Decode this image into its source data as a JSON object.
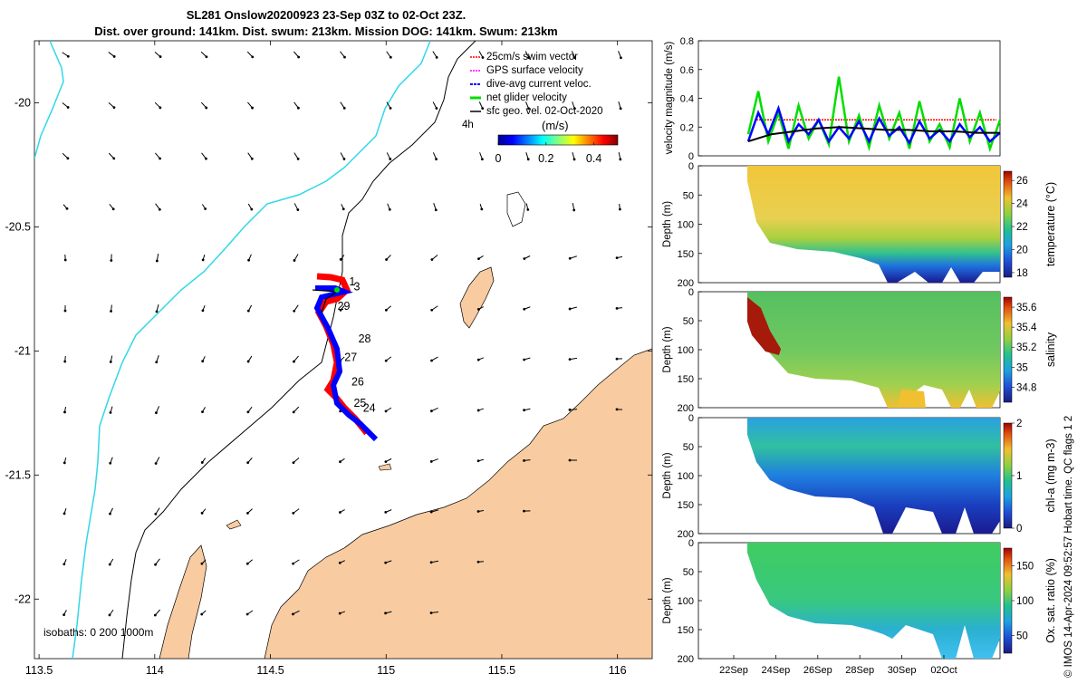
{
  "header": {
    "title_line1": "SL281 Onslow20200923 23-Sep 03Z to 02-Oct 23Z.",
    "title_line2": "Dist. over ground: 141km. Dist. swum: 213km. Mission DOG: 141km. Swum: 213km"
  },
  "footer": {
    "credit": "© IMOS 14-Apr-2024 09:52:57 Hobart time. QC flags 1  2"
  },
  "chart_data": [
    {
      "type": "map",
      "x_ticks": [
        "113.5",
        "114",
        "114.5",
        "115",
        "115.5",
        "116"
      ],
      "y_ticks": [
        "-20",
        "-20.5",
        "-21",
        "-21.5",
        "-22"
      ],
      "xlim": [
        113.48,
        116.15
      ],
      "ylim": [
        -22.24,
        -19.75
      ],
      "legend": {
        "placement": "top-right",
        "items": [
          {
            "label": "25cm/s swim vector",
            "color": "#ff0000"
          },
          {
            "label": "GPS surface velocity",
            "color": "#ff00ff"
          },
          {
            "label": "dive-avg current veloc.",
            "color": "#0000ff"
          },
          {
            "label": "net glider velocity",
            "color": "#00dd00"
          },
          {
            "label": "sfc geo. vel. 02-Oct-2020",
            "color": "#000000"
          }
        ],
        "extra": "4h"
      },
      "colorbar": {
        "label": "(m/s)",
        "ticks": [
          "0",
          "0.2",
          "0.4"
        ],
        "range": [
          0,
          0.5
        ]
      },
      "isobath_label": "isobaths: 0   200  1000m",
      "track_labels": [
        {
          "text": "1",
          "x": 114.84,
          "y": -20.735
        },
        {
          "text": "3",
          "x": 114.86,
          "y": -20.755
        },
        {
          "text": "29",
          "x": 114.79,
          "y": -20.835
        },
        {
          "text": "28",
          "x": 114.88,
          "y": -20.965
        },
        {
          "text": "27",
          "x": 114.82,
          "y": -21.04
        },
        {
          "text": "26",
          "x": 114.85,
          "y": -21.14
        },
        {
          "text": "25",
          "x": 114.86,
          "y": -21.225
        },
        {
          "text": "24",
          "x": 114.9,
          "y": -21.245
        }
      ]
    },
    {
      "type": "line",
      "ylabel": "velocity magnitude (m/s)",
      "y_ticks": [
        "0",
        "0.2",
        "0.4",
        "0.6",
        "0.8"
      ],
      "ylim": [
        0,
        0.8
      ],
      "series": [
        {
          "color": "#ff0000",
          "values": [
            0.25,
            0.25
          ]
        },
        {
          "color": "#00dd00",
          "values": [
            0.15,
            0.45,
            0.1,
            0.3,
            0.05,
            0.35,
            0.12,
            0.25,
            0.08,
            0.55,
            0.1,
            0.28,
            0.06,
            0.35,
            0.12,
            0.3,
            0.05,
            0.38,
            0.1,
            0.22,
            0.06,
            0.4,
            0.1,
            0.3,
            0.05,
            0.25
          ]
        },
        {
          "color": "#0000ff",
          "values": [
            0.1,
            0.3,
            0.15,
            0.33,
            0.1,
            0.22,
            0.15,
            0.25,
            0.1,
            0.2,
            0.12,
            0.24,
            0.1,
            0.26,
            0.14,
            0.2,
            0.09,
            0.24,
            0.12,
            0.18,
            0.1,
            0.22,
            0.13,
            0.2,
            0.1,
            0.16
          ]
        },
        {
          "color": "#000000",
          "values": [
            0.1,
            0.15,
            0.17,
            0.19,
            0.2,
            0.19,
            0.18,
            0.18,
            0.17,
            0.17,
            0.16,
            0.16
          ]
        }
      ]
    },
    {
      "type": "heatmap",
      "ylabel": "Depth (m)",
      "y_ticks": [
        "0",
        "50",
        "100",
        "150",
        "200"
      ],
      "colorbar_label": "temperature (°C)",
      "colorbar_ticks": [
        "26",
        "24",
        "22",
        "20",
        "18"
      ]
    },
    {
      "type": "heatmap",
      "ylabel": "Depth (m)",
      "y_ticks": [
        "0",
        "50",
        "100",
        "150",
        "200"
      ],
      "colorbar_label": "salinity",
      "colorbar_ticks": [
        "35.6",
        "35.4",
        "35.2",
        "35",
        "34.8"
      ]
    },
    {
      "type": "heatmap",
      "ylabel": "Depth (m)",
      "y_ticks": [
        "0",
        "50",
        "100",
        "150",
        "200"
      ],
      "colorbar_label": "chl-a (mg m-3)",
      "colorbar_ticks": [
        "2",
        "1",
        "0"
      ]
    },
    {
      "type": "heatmap",
      "ylabel": "Depth (m)",
      "y_ticks": [
        "0",
        "50",
        "100",
        "150",
        "200"
      ],
      "colorbar_label": "Ox. sat. ratio (%)",
      "colorbar_ticks": [
        "150",
        "100",
        "50"
      ],
      "x_ticks": [
        "22Sep",
        "24Sep",
        "26Sep",
        "28Sep",
        "30Sep",
        "02Oct"
      ]
    }
  ]
}
